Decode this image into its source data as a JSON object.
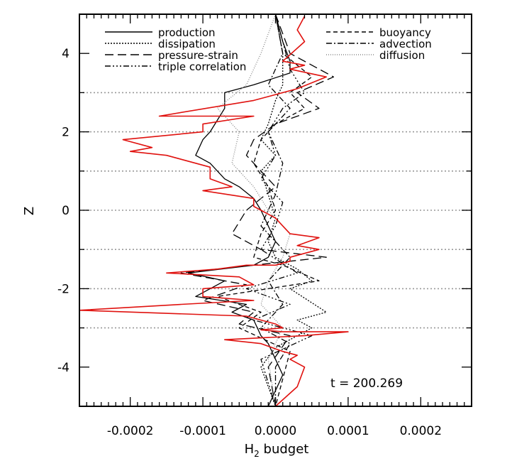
{
  "chart_data": {
    "type": "line",
    "xlabel": "H",
    "xlabel_sub": "2",
    "xlabel_rest": " budget",
    "ylabel": "Z",
    "xlim": [
      -0.00027,
      0.00027
    ],
    "ylim": [
      -5,
      5
    ],
    "x_tick_labels": [
      "-0.0002",
      "-0.0001",
      "0.0000",
      "0.0001",
      "0.0002"
    ],
    "x_tick_values": [
      -0.0002,
      -0.0001,
      0.0,
      0.0001,
      0.0002
    ],
    "y_tick_labels": [
      "-4",
      "-2",
      "0",
      "2",
      "4"
    ],
    "y_tick_values": [
      -4,
      -2,
      0,
      2,
      4
    ],
    "grid_lines_y": [
      -3,
      -1,
      1,
      3
    ],
    "zero_line_dashes": [
      -2,
      0,
      2
    ],
    "time_annotation": "t  =  200.269",
    "legend_left": [
      "production",
      "dissipation",
      "pressure-strain",
      "triple correlation"
    ],
    "legend_right": [
      "buoyancy",
      "advection",
      "diffusion"
    ],
    "series": [
      {
        "name": "production",
        "color": "#000000",
        "dash": "",
        "x": [
          0.0,
          1e-05,
          2e-05,
          2e-05,
          -3e-05,
          -7e-05,
          -7e-05,
          -8e-05,
          -9e-05,
          -0.0001,
          -0.00011,
          -9e-05,
          -7e-05,
          -5e-05,
          -3e-05,
          -2e-05,
          -1e-05,
          0.0,
          -1e-05,
          -3e-05,
          -0.00012,
          -7e-05,
          -0.00011,
          -4e-05,
          -6e-05,
          -3e-05,
          -2e-05,
          -1e-05,
          0.0,
          1e-05,
          0.0,
          -1e-05
        ],
        "y": [
          5.0,
          4.3,
          3.8,
          3.5,
          3.2,
          3.0,
          2.6,
          2.3,
          2.0,
          1.8,
          1.4,
          1.2,
          0.8,
          0.6,
          0.3,
          0.0,
          -0.4,
          -0.8,
          -1.2,
          -1.4,
          -1.6,
          -1.8,
          -2.2,
          -2.4,
          -2.6,
          -2.8,
          -3.2,
          -3.4,
          -3.8,
          -4.2,
          -4.6,
          -5.0
        ]
      },
      {
        "name": "dissipation",
        "color": "#000000",
        "dash": "2,2",
        "x": [
          0.0,
          1e-05,
          1e-05,
          0.0,
          -1e-05,
          -2e-05,
          0.0,
          -2e-05,
          -1e-05,
          0.0,
          -1e-05,
          0.0,
          3e-05,
          5e-05,
          2e-05,
          7e-05,
          3e-05,
          5e-05,
          0.0,
          -2e-05,
          0.0
        ],
        "y": [
          5.0,
          4.0,
          3.2,
          2.8,
          2.2,
          1.8,
          1.4,
          1.0,
          0.4,
          -0.2,
          -0.8,
          -1.2,
          -1.5,
          -1.8,
          -2.0,
          -2.6,
          -2.8,
          -3.0,
          -3.5,
          -4.0,
          -5.0
        ]
      },
      {
        "name": "pressure-strain",
        "color": "#000000",
        "dash": "12,6",
        "x": [
          0.0,
          2e-05,
          8e-05,
          3e-05,
          6e-05,
          0.0,
          -3e-05,
          -4e-05,
          -2e-05,
          0.0,
          -4e-05,
          -6e-05,
          -2e-05,
          7e-05,
          -0.00013,
          -4e-05,
          -0.0001,
          -3e-05,
          -5e-05,
          2e-05,
          -1e-05,
          0.0
        ],
        "y": [
          5.0,
          4.0,
          3.4,
          3.0,
          2.6,
          2.2,
          1.8,
          1.4,
          1.0,
          0.6,
          0.0,
          -0.6,
          -1.0,
          -1.2,
          -1.6,
          -1.9,
          -2.3,
          -2.6,
          -2.9,
          -3.2,
          -4.0,
          -5.0
        ]
      },
      {
        "name": "triple correlation",
        "color": "#000000",
        "dash": "8,3,2,3,2,3,2,3",
        "x": [
          0.0,
          2e-05,
          4e-05,
          1e-05,
          -1e-05,
          0.0,
          -2e-05,
          1e-05,
          0.0,
          -2e-05,
          3e-05,
          -4e-05,
          2e-05,
          -3e-05,
          5e-05,
          -2e-05,
          0.0
        ],
        "y": [
          5.0,
          3.6,
          3.0,
          2.6,
          2.0,
          1.4,
          0.8,
          0.2,
          -0.4,
          -1.0,
          -1.6,
          -2.0,
          -2.4,
          -2.8,
          -3.2,
          -3.8,
          -5.0
        ]
      },
      {
        "name": "buoyancy",
        "color": "#000000",
        "dash": "6,4",
        "x": [
          0.0,
          1e-05,
          5e-05,
          2e-05,
          4e-05,
          0.0,
          -2e-05,
          -3e-05,
          -1e-05,
          0.0,
          -2e-05,
          -3e-05,
          1e-05,
          6e-05,
          -8e-05,
          -2e-05,
          -5e-05,
          2e-05,
          0.0
        ],
        "y": [
          5.0,
          4.0,
          3.4,
          3.0,
          2.6,
          2.2,
          1.8,
          1.2,
          0.6,
          0.0,
          -0.6,
          -1.2,
          -1.4,
          -1.8,
          -2.2,
          -2.6,
          -3.0,
          -3.6,
          -5.0
        ]
      },
      {
        "name": "advection",
        "color": "#000000",
        "dash": "8,3,2,3",
        "x": [
          0.0,
          1e-05,
          -1e-05,
          2e-05,
          -1e-05,
          1e-05,
          0.0,
          -2e-05,
          2e-05,
          -1e-05,
          1e-05,
          -2e-05,
          2e-05,
          0.0,
          0.0
        ],
        "y": [
          5.0,
          4.0,
          3.2,
          2.6,
          2.0,
          1.2,
          0.4,
          -0.4,
          -1.2,
          -1.8,
          -2.4,
          -3.0,
          -3.4,
          -4.0,
          -5.0
        ]
      },
      {
        "name": "diffusion",
        "color": "#888888",
        "dash": "1,2",
        "x": [
          0.0,
          -2e-05,
          -4e-05,
          -8e-05,
          -5e-05,
          -6e-05,
          -3e-05,
          -1e-05,
          2e-05,
          1e-05,
          -1e-05,
          -2e-05,
          1e-05,
          -1e-05,
          0.0
        ],
        "y": [
          5.0,
          4.0,
          3.2,
          2.6,
          2.0,
          1.2,
          0.6,
          0.0,
          -0.6,
          -1.2,
          -1.8,
          -2.4,
          -3.0,
          -3.8,
          -5.0
        ]
      },
      {
        "name": "",
        "color": "#e0120f",
        "dash": "",
        "x": [
          4e-05,
          3e-05,
          4e-05,
          1e-05,
          4e-05,
          2e-05,
          7e-05,
          3e-05,
          -3e-05,
          -0.00016,
          -3e-05,
          -0.0001,
          -0.0001,
          -0.00021,
          -0.00017,
          -0.0002,
          -0.00015,
          -9e-05,
          -9e-05,
          -6e-05,
          -0.0001,
          -3e-05,
          -3e-05,
          -2e-05,
          0.0,
          1e-05,
          2e-05,
          6e-05,
          3e-05,
          6e-05,
          2e-05,
          2e-05,
          0.0,
          -4e-05,
          -8e-05,
          -0.00015,
          -5e-05,
          -3e-05,
          -0.0001,
          -0.0001,
          -3e-05,
          -0.00013,
          -0.00027,
          -4e-05,
          -2e-05,
          0.0,
          1e-05,
          -2e-05,
          1e-05,
          0.0001,
          4e-05,
          -7e-05,
          -2e-05,
          1e-05,
          3e-05,
          2e-05,
          4e-05,
          3e-05,
          0.0
        ],
        "y": [
          4.95,
          4.6,
          4.3,
          3.8,
          3.7,
          3.6,
          3.4,
          3.1,
          2.8,
          2.4,
          2.4,
          2.2,
          2.0,
          1.8,
          1.6,
          1.5,
          1.4,
          1.1,
          0.8,
          0.6,
          0.5,
          0.3,
          0.1,
          0.0,
          -0.2,
          -0.4,
          -0.6,
          -0.7,
          -0.9,
          -1.0,
          -1.2,
          -1.3,
          -1.4,
          -1.4,
          -1.5,
          -1.6,
          -1.7,
          -1.9,
          -2.0,
          -2.2,
          -2.3,
          -2.4,
          -2.55,
          -2.7,
          -2.8,
          -2.9,
          -3.0,
          -3.05,
          -3.1,
          -3.1,
          -3.2,
          -3.3,
          -3.4,
          -3.6,
          -3.7,
          -3.8,
          -4.0,
          -4.5,
          -5.0
        ]
      }
    ]
  }
}
